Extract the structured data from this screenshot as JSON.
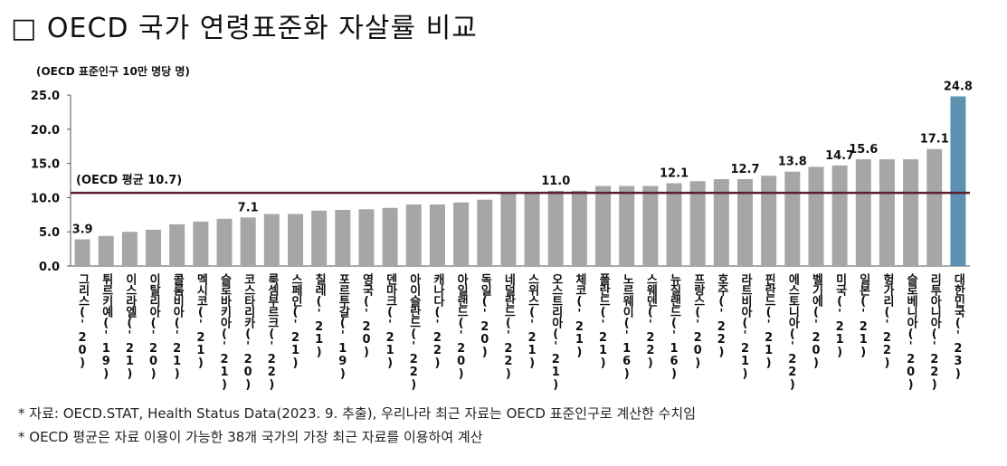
{
  "title": "□ OECD 국가 연령표준화 자살률 비교",
  "unit_label": "(OECD 표준인구 10만 명당 명)",
  "notes": [
    "* 자료: OECD.STAT, Health Status Data(2023. 9. 추출), 우리나라 최근 자료는 OECD 표준인구로 계산한 수치임",
    "* OECD 평균은 자료 이용이 가능한 38개 국가의 가장 최근 자료를 이용하여 계산"
  ],
  "colors": {
    "bar": "#a6a6a6",
    "highlight": "#5b91b1",
    "avg_line": "#5a1f2c",
    "axis": "#555555"
  },
  "chart_data": {
    "type": "bar",
    "ylim": [
      0,
      25
    ],
    "yticks": [
      "0.0",
      "5.0",
      "10.0",
      "15.0",
      "20.0",
      "25.0"
    ],
    "average": {
      "label": "(OECD 평균 10.7)",
      "value": 10.7
    },
    "categories": [
      "그리스('20)",
      "튀르키예('19)",
      "이스라엘('21)",
      "이탈리아('20)",
      "콜롬비아('21)",
      "멕시코('21)",
      "슬로바키아('21)",
      "코스타리카('20)",
      "룩셈부르크('22)",
      "스페인('21)",
      "칠레('21)",
      "포르투갈('19)",
      "영국('20)",
      "덴마크('21)",
      "아이슬란드('22)",
      "캐나다('22)",
      "아일랜드('20)",
      "독일('20)",
      "네덜란드('22)",
      "스위스('21)",
      "오스트리아('21)",
      "체코('21)",
      "폴란드('21)",
      "노르웨이('16)",
      "스웨덴('22)",
      "뉴질랜드('16)",
      "프랑스('20)",
      "호주('22)",
      "라트비아('21)",
      "핀란드('21)",
      "에스토니아('22)",
      "벨기에('20)",
      "미국('21)",
      "일본('21)",
      "헝가리('22)",
      "슬로베니아('20)",
      "리투아니아('22)",
      "대한민국('23)"
    ],
    "values": [
      3.9,
      4.4,
      5.0,
      5.3,
      6.1,
      6.5,
      6.9,
      7.1,
      7.6,
      7.6,
      8.1,
      8.2,
      8.3,
      8.5,
      9.0,
      9.0,
      9.3,
      9.7,
      10.7,
      10.8,
      11.0,
      11.0,
      11.7,
      11.7,
      11.7,
      12.1,
      12.4,
      12.7,
      12.7,
      13.2,
      13.8,
      14.5,
      14.7,
      15.6,
      15.6,
      15.6,
      17.1,
      24.8
    ],
    "data_labels": [
      {
        "index": 0,
        "text": "3.9"
      },
      {
        "index": 7,
        "text": "7.1"
      },
      {
        "index": 20,
        "text": "11.0"
      },
      {
        "index": 25,
        "text": "12.1"
      },
      {
        "index": 28,
        "text": "12.7"
      },
      {
        "index": 30,
        "text": "13.8"
      },
      {
        "index": 32,
        "text": "14.7"
      },
      {
        "index": 33,
        "text": "15.6"
      },
      {
        "index": 36,
        "text": "17.1"
      },
      {
        "index": 37,
        "text": "24.8"
      }
    ],
    "highlight_index": 37
  }
}
